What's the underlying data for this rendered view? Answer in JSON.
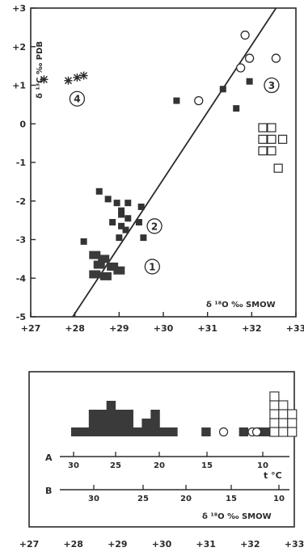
{
  "chart_data": [
    {
      "type": "scatter",
      "title": "",
      "xlabel": "δ ¹⁸O ‰ SMOW",
      "ylabel": "δ ¹³C ‰ PDB",
      "xlim": [
        27,
        33
      ],
      "ylim": [
        -5,
        3
      ],
      "x_ticks": [
        "+27",
        "+28",
        "+29",
        "+30",
        "+31",
        "+32",
        "+33"
      ],
      "y_ticks": [
        "+3",
        "+2",
        "+1",
        "0",
        "-1",
        "-2",
        "-3",
        "-4",
        "-5"
      ],
      "trend_line": {
        "x": [
          27.95,
          32.55
        ],
        "y": [
          -5.0,
          3.0
        ]
      },
      "group_labels": [
        "1",
        "2",
        "3",
        "4"
      ],
      "series": [
        {
          "marker": "star",
          "points": [
            [
              27.3,
              1.15
            ],
            [
              27.85,
              1.12
            ],
            [
              28.05,
              1.2
            ],
            [
              28.2,
              1.25
            ]
          ]
        },
        {
          "marker": "filled-square",
          "points": [
            [
              28.55,
              -1.75
            ],
            [
              28.75,
              -1.95
            ],
            [
              28.95,
              -2.05
            ],
            [
              29.05,
              -2.25
            ],
            [
              29.2,
              -2.05
            ],
            [
              29.5,
              -2.15
            ],
            [
              29.05,
              -2.35
            ],
            [
              28.85,
              -2.55
            ],
            [
              29.05,
              -2.65
            ],
            [
              29.15,
              -2.75
            ],
            [
              29.2,
              -2.45
            ],
            [
              29.45,
              -2.55
            ],
            [
              29.55,
              -2.95
            ],
            [
              29.0,
              -2.95
            ],
            [
              28.2,
              -3.05
            ],
            [
              30.3,
              0.6
            ],
            [
              31.35,
              0.9
            ],
            [
              31.65,
              0.4
            ],
            [
              31.95,
              1.1
            ]
          ]
        },
        {
          "marker": "filled-patch",
          "points": [
            [
              28.45,
              -3.4
            ],
            [
              28.65,
              -3.5
            ],
            [
              28.55,
              -3.65
            ],
            [
              28.85,
              -3.7
            ],
            [
              29.0,
              -3.8
            ],
            [
              28.45,
              -3.9
            ],
            [
              28.7,
              -3.95
            ]
          ]
        },
        {
          "marker": "open-circle",
          "points": [
            [
              31.85,
              2.3
            ],
            [
              31.75,
              1.45
            ],
            [
              31.95,
              1.7
            ],
            [
              32.55,
              1.7
            ],
            [
              30.8,
              0.6
            ]
          ]
        },
        {
          "marker": "open-square",
          "points": [
            [
              32.25,
              -0.1
            ],
            [
              32.45,
              -0.1
            ],
            [
              32.25,
              -0.4
            ],
            [
              32.45,
              -0.4
            ],
            [
              32.7,
              -0.4
            ],
            [
              32.25,
              -0.7
            ],
            [
              32.45,
              -0.7
            ],
            [
              32.6,
              -1.15
            ]
          ]
        }
      ]
    },
    {
      "type": "histogram",
      "xlabel": "δ ¹⁸O ‰ SMOW",
      "xlim": [
        27,
        33
      ],
      "x_ticks": [
        "+27",
        "+28",
        "+29",
        "+30",
        "+31",
        "+32",
        "+33"
      ],
      "scale_A": {
        "label": "A",
        "unit": "t °C",
        "ticks": [
          "30",
          "25",
          "20",
          "15",
          "10"
        ]
      },
      "scale_B": {
        "label": "B",
        "ticks": [
          "30",
          "25",
          "20",
          "15",
          "10"
        ]
      },
      "filled_bins": [
        {
          "x": 28.05,
          "count": 1
        },
        {
          "x": 28.25,
          "count": 1
        },
        {
          "x": 28.45,
          "count": 3
        },
        {
          "x": 28.65,
          "count": 3
        },
        {
          "x": 28.85,
          "count": 4
        },
        {
          "x": 29.05,
          "count": 3
        },
        {
          "x": 29.25,
          "count": 3
        },
        {
          "x": 29.45,
          "count": 1
        },
        {
          "x": 29.65,
          "count": 2
        },
        {
          "x": 29.85,
          "count": 3
        },
        {
          "x": 30.05,
          "count": 1
        },
        {
          "x": 30.25,
          "count": 1
        },
        {
          "x": 31.0,
          "count": 1
        },
        {
          "x": 31.85,
          "count": 1
        },
        {
          "x": 32.25,
          "count": 1
        },
        {
          "x": 32.45,
          "count": 1
        }
      ],
      "open_circles": [
        31.4,
        32.05,
        32.15
      ],
      "open_squares": [
        {
          "x": 32.55,
          "count": 5
        },
        {
          "x": 32.75,
          "count": 4
        },
        {
          "x": 32.95,
          "count": 3
        }
      ]
    }
  ]
}
